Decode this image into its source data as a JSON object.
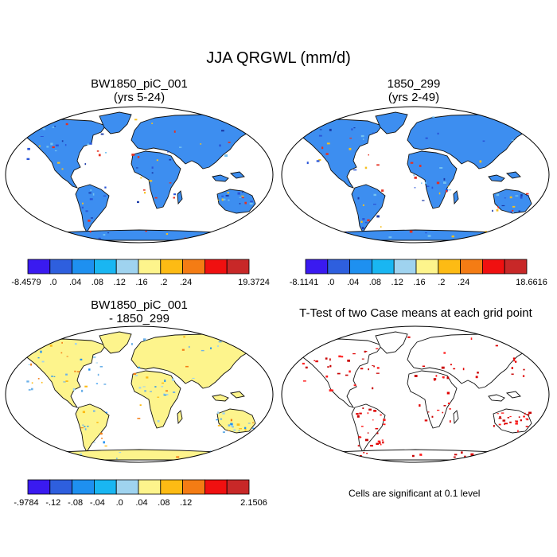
{
  "title": "JJA QRGWL (mm/d)",
  "panels": [
    {
      "title_line1": "BW1850_piC_001",
      "title_line2": "(yrs 5-24)",
      "map_fill": "#3d8ef0"
    },
    {
      "title_line1": "1850_299",
      "title_line2": "(yrs 2-49)",
      "map_fill": "#3d8ef0"
    },
    {
      "title_line1": "BW1850_piC_001",
      "title_line2": "- 1850_299",
      "map_fill": "#fdf48c"
    },
    {
      "title_line1": "T-Test of two Case means at each grid point",
      "title_line2": "",
      "map_fill": "#ffffff"
    }
  ],
  "footnote": "Cells are significant at 0.1 level",
  "chart_data": [
    {
      "type": "heatmap",
      "title": "BW1850_piC_001 (yrs 5-24)",
      "colorbar": {
        "colors": [
          "#3a1af0",
          "#2e5fde",
          "#1e90f0",
          "#19b6f2",
          "#9fd3ef",
          "#fdf48c",
          "#fdbb14",
          "#f47c14",
          "#f01010",
          "#c82828"
        ],
        "labels": [
          "-8.4579",
          ".0",
          ".04",
          ".08",
          ".12",
          ".16",
          ".2",
          ".24",
          "19.3724"
        ]
      }
    },
    {
      "type": "heatmap",
      "title": "1850_299 (yrs 2-49)",
      "colorbar": {
        "colors": [
          "#3a1af0",
          "#2e5fde",
          "#1e90f0",
          "#19b6f2",
          "#9fd3ef",
          "#fdf48c",
          "#fdbb14",
          "#f47c14",
          "#f01010",
          "#c82828"
        ],
        "labels": [
          "-8.1141",
          ".0",
          ".04",
          ".08",
          ".12",
          ".16",
          ".2",
          ".24",
          "18.6616"
        ]
      }
    },
    {
      "type": "heatmap",
      "title": "BW1850_piC_001 - 1850_299",
      "colorbar": {
        "colors": [
          "#3a1af0",
          "#2e5fde",
          "#1e90f0",
          "#19b6f2",
          "#9fd3ef",
          "#fdf48c",
          "#fdbb14",
          "#f47c14",
          "#f01010",
          "#c82828"
        ],
        "labels": [
          "-.9784",
          "-.12",
          "-.08",
          "-.04",
          ".0",
          ".04",
          ".08",
          ".12",
          "2.1506"
        ]
      }
    },
    {
      "type": "heatmap",
      "title": "T-Test of two Case means at each grid point",
      "note": "Cells are significant at 0.1 level"
    }
  ]
}
